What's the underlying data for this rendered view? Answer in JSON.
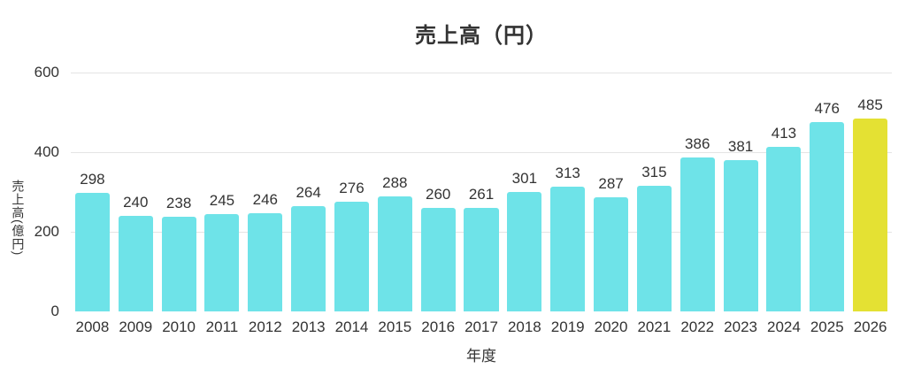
{
  "chart_data": {
    "type": "bar",
    "title": "売上高（円）",
    "xlabel": "年度",
    "ylabel": "売上高(億円)",
    "categories": [
      "2008",
      "2009",
      "2010",
      "2011",
      "2012",
      "2013",
      "2014",
      "2015",
      "2016",
      "2017",
      "2018",
      "2019",
      "2020",
      "2021",
      "2022",
      "2023",
      "2024",
      "2025",
      "2026"
    ],
    "values": [
      298,
      240,
      238,
      245,
      246,
      264,
      276,
      288,
      260,
      261,
      301,
      313,
      287,
      315,
      386,
      381,
      413,
      476,
      485
    ],
    "ylim": [
      0,
      600
    ],
    "yticks": [
      0,
      200,
      400,
      600
    ],
    "grid_ticks": [
      200,
      400,
      600
    ],
    "legend_position": "none",
    "grid": "horizontal",
    "bar_color": "#6EE3E8",
    "highlight_color": "#E4E133",
    "highlight_category": "2026",
    "text_color": "#333333",
    "gridline_color": "#E4E4E4",
    "background_color": "#FFFFFF"
  }
}
